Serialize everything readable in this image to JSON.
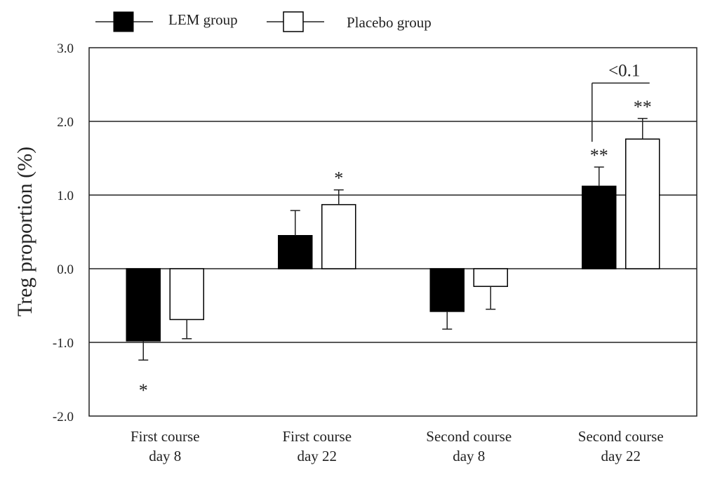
{
  "chart_data": {
    "type": "bar",
    "title": "",
    "xlabel": "",
    "ylabel": "Treg proportion (%)",
    "ylim": [
      -2.0,
      3.0
    ],
    "yticks": [
      "3.0",
      "2.0",
      "1.0",
      "0.0",
      "-1.0",
      "-2.0"
    ],
    "grid": true,
    "legend_position": "top",
    "categories": [
      [
        "First course",
        "day 8"
      ],
      [
        "First course",
        "day 22"
      ],
      [
        "Second course",
        "day 8"
      ],
      [
        "Second course",
        "day 22"
      ]
    ],
    "series": [
      {
        "name": "LEM group",
        "color": "#000000",
        "values": [
          -0.98,
          0.45,
          -0.58,
          1.12
        ],
        "errors": [
          0.26,
          0.34,
          0.24,
          0.26
        ],
        "annotations": [
          "*",
          "",
          "",
          "**"
        ]
      },
      {
        "name": "Placebo group",
        "color": "#ffffff",
        "values": [
          -0.69,
          0.87,
          -0.24,
          1.76
        ],
        "errors": [
          0.26,
          0.2,
          0.31,
          0.28
        ],
        "annotations": [
          "",
          "*",
          "",
          "**"
        ]
      }
    ],
    "comparison": {
      "category_index": 3,
      "label": "<0.1"
    }
  }
}
